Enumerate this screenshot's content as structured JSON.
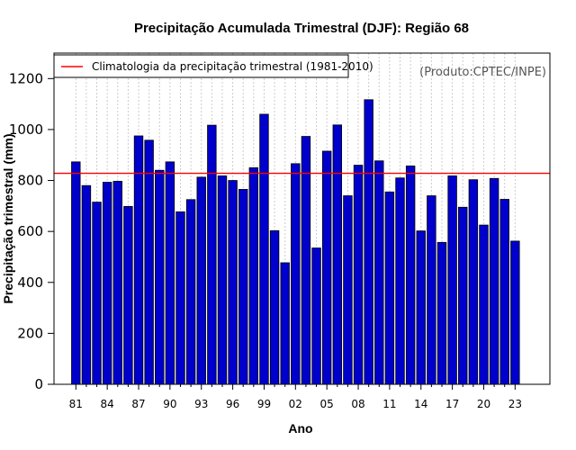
{
  "chart_data": {
    "type": "bar",
    "title": "Precipitação Acumulada Trimestral (DJF): Região 68",
    "xlabel": "Ano",
    "ylabel": "Precipitação trimestral (mm)",
    "ylim": [
      0,
      1300
    ],
    "yticks": [
      0,
      200,
      400,
      600,
      800,
      1000,
      1200
    ],
    "ytick_labels": [
      "0",
      "200",
      "400",
      "600",
      "800",
      "1000",
      "1200"
    ],
    "xtick_labels": [
      "81",
      "84",
      "87",
      "90",
      "93",
      "96",
      "99",
      "02",
      "05",
      "08",
      "11",
      "14",
      "17",
      "20",
      "23"
    ],
    "xtick_every": 3,
    "categories": [
      "1981",
      "1982",
      "1983",
      "1984",
      "1985",
      "1986",
      "1987",
      "1988",
      "1989",
      "1990",
      "1991",
      "1992",
      "1993",
      "1994",
      "1995",
      "1996",
      "1997",
      "1998",
      "1999",
      "2000",
      "2001",
      "2002",
      "2003",
      "2004",
      "2005",
      "2006",
      "2007",
      "2008",
      "2009",
      "2010",
      "2011",
      "2012",
      "2013",
      "2014",
      "2015",
      "2016",
      "2017",
      "2018",
      "2019",
      "2020",
      "2021",
      "2022",
      "2023"
    ],
    "values": [
      873,
      780,
      715,
      793,
      797,
      698,
      975,
      958,
      840,
      873,
      677,
      725,
      813,
      1017,
      818,
      800,
      765,
      850,
      1060,
      603,
      477,
      866,
      973,
      535,
      915,
      1018,
      740,
      860,
      1117,
      877,
      755,
      810,
      857,
      602,
      740,
      557,
      818,
      695,
      803,
      625,
      808,
      726,
      562
    ],
    "climatology": 828,
    "legend": {
      "label": "Climatologia da precipitação trimestral (1981-2010)",
      "position": "top-left"
    },
    "source_note": "(Produto:CPTEC/INPE)",
    "grid": "vertical-dotted",
    "colors": {
      "bar_fill": "#0000cc",
      "bar_stroke": "#000000",
      "climatology_line": "#ff0000",
      "grid": "#cccccc"
    }
  }
}
